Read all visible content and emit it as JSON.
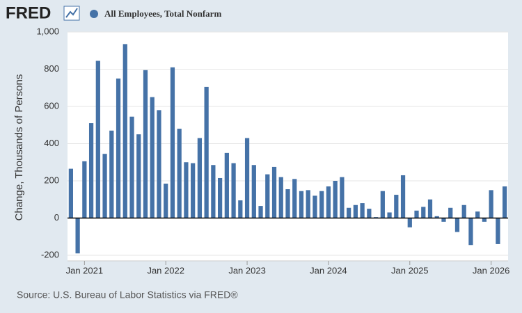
{
  "logo": "FRED",
  "chart_data": {
    "type": "bar",
    "title": "All Employees, Total Nonfarm",
    "y_label": "Change, Thousands of Persons",
    "source": "Source: U.S. Bureau of Labor Statistics via FRED®",
    "color": "#4572a7",
    "grid": true,
    "x": [
      "2020-11",
      "2020-12",
      "2021-01",
      "2021-02",
      "2021-03",
      "2021-04",
      "2021-05",
      "2021-06",
      "2021-07",
      "2021-08",
      "2021-09",
      "2021-10",
      "2021-11",
      "2021-12",
      "2022-01",
      "2022-02",
      "2022-03",
      "2022-04",
      "2022-05",
      "2022-06",
      "2022-07",
      "2022-08",
      "2022-09",
      "2022-10",
      "2022-11",
      "2022-12",
      "2023-01",
      "2023-02",
      "2023-03",
      "2023-04",
      "2023-05",
      "2023-06",
      "2023-07",
      "2023-08",
      "2023-09",
      "2023-10",
      "2023-11",
      "2023-12",
      "2024-01",
      "2024-02",
      "2024-03",
      "2024-04",
      "2024-05",
      "2024-06",
      "2024-07",
      "2024-08",
      "2024-09",
      "2024-10",
      "2024-11",
      "2024-12",
      "2025-01",
      "2025-02",
      "2025-03",
      "2025-04",
      "2025-05",
      "2025-06",
      "2025-07",
      "2025-08",
      "2025-09",
      "2025-10",
      "2025-11",
      "2025-12",
      "2026-01",
      "2026-02",
      "2026-03"
    ],
    "values": [
      265,
      -190,
      305,
      510,
      845,
      345,
      470,
      750,
      935,
      545,
      450,
      795,
      650,
      580,
      185,
      810,
      480,
      300,
      295,
      430,
      705,
      285,
      215,
      350,
      295,
      95,
      430,
      285,
      65,
      235,
      275,
      220,
      155,
      210,
      145,
      150,
      120,
      145,
      170,
      200,
      220,
      55,
      70,
      80,
      50,
      5,
      145,
      30,
      125,
      230,
      -50,
      40,
      60,
      100,
      10,
      -20,
      55,
      -75,
      70,
      -145,
      35,
      -20,
      150,
      -140,
      170
    ],
    "ylim": [
      -230,
      1000
    ],
    "yticks": [
      -200,
      0,
      200,
      400,
      600,
      800,
      {
        "value": 1000,
        "label": "1,000"
      }
    ],
    "xticks": [
      {
        "value": "2021-01",
        "label": "Jan 2021"
      },
      {
        "value": "2022-01",
        "label": "Jan 2022"
      },
      {
        "value": "2023-01",
        "label": "Jan 2023"
      },
      {
        "value": "2024-01",
        "label": "Jan 2024"
      },
      {
        "value": "2025-01",
        "label": "Jan 2025"
      },
      {
        "value": "2026-01",
        "label": "Jan 2026"
      }
    ]
  }
}
